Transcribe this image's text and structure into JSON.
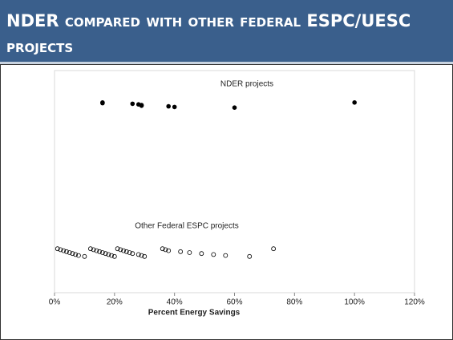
{
  "slide_title": {
    "lead": "NDER",
    "rest": "compared with other federal ESPC/UESC projects"
  },
  "chart_data": {
    "type": "scatter",
    "series": [
      {
        "name": "NDER projects",
        "color": "#000000",
        "marker": "filled",
        "values": [
          16,
          16,
          26,
          28,
          29,
          29,
          38,
          40,
          60,
          100
        ]
      },
      {
        "name": "Other Federal ESPC projects",
        "color": "#000000",
        "marker": "open",
        "values": [
          1,
          2,
          3,
          4,
          5,
          6,
          7,
          8,
          10,
          12,
          13,
          14,
          15,
          16,
          17,
          18,
          19,
          20,
          21,
          22,
          23,
          24,
          25,
          26,
          28,
          29,
          30,
          36,
          37,
          38,
          42,
          45,
          49,
          53,
          57,
          65,
          73
        ]
      }
    ],
    "xlabel": "Percent Energy Savings",
    "xlim": [
      0,
      120
    ],
    "xticks": [
      {
        "value": 0,
        "label": "0%"
      },
      {
        "value": 20,
        "label": "20%"
      },
      {
        "value": 40,
        "label": "40%"
      },
      {
        "value": 60,
        "label": "60%"
      },
      {
        "value": 80,
        "label": "80%"
      },
      {
        "value": 100,
        "label": "100%"
      },
      {
        "value": 120,
        "label": "120%"
      }
    ]
  }
}
